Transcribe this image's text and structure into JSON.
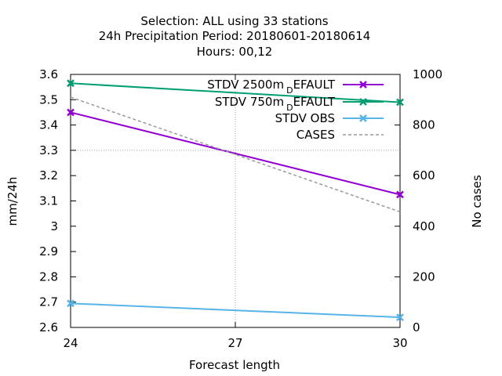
{
  "title_lines": [
    "Selection: ALL using    33 stations",
    "24h Precipitation    Period: 20180601-20180614",
    "Hours:  00,12"
  ],
  "chart_data": {
    "type": "line",
    "xlabel": "Forecast length",
    "ylabel": "mm/24h",
    "y2label": "No cases",
    "xlim": [
      24,
      30
    ],
    "ylim": [
      2.6,
      3.6
    ],
    "y2lim": [
      0,
      1000
    ],
    "xticks": [
      "24",
      "27",
      "30"
    ],
    "yticks": [
      "2.6",
      "2.7",
      "2.8",
      "2.9",
      "3",
      "3.1",
      "3.2",
      "3.3",
      "3.4",
      "3.5",
      "3.6"
    ],
    "y2ticks": [
      "0",
      "200",
      "400",
      "600",
      "800",
      "1000"
    ],
    "grid": "center cross at x=27, y=3.3",
    "legend_position": "top-right",
    "series": [
      {
        "name": "STDV 2500m",
        "name_sub": "D",
        "name_rest": "EFAULT",
        "axis": "y1",
        "color": "#9400d3",
        "marker": "x",
        "x": [
          24,
          30
        ],
        "y": [
          3.45,
          3.125
        ]
      },
      {
        "name": "STDV 750m",
        "name_sub": "D",
        "name_rest": "EFAULT",
        "axis": "y1",
        "color": "#009e73",
        "marker": "x",
        "x": [
          24,
          30
        ],
        "y": [
          3.565,
          3.49
        ]
      },
      {
        "name": "STDV OBS",
        "name_sub": "",
        "name_rest": "",
        "axis": "y1",
        "color": "#56b4e9",
        "marker": "x",
        "x": [
          24,
          30
        ],
        "y": [
          2.695,
          2.64
        ]
      },
      {
        "name": "CASES",
        "name_sub": "",
        "name_rest": "",
        "axis": "y2",
        "color": "#999999",
        "dashed": true,
        "marker": "none",
        "x": [
          24,
          30
        ],
        "y": [
          910,
          457
        ]
      }
    ]
  }
}
